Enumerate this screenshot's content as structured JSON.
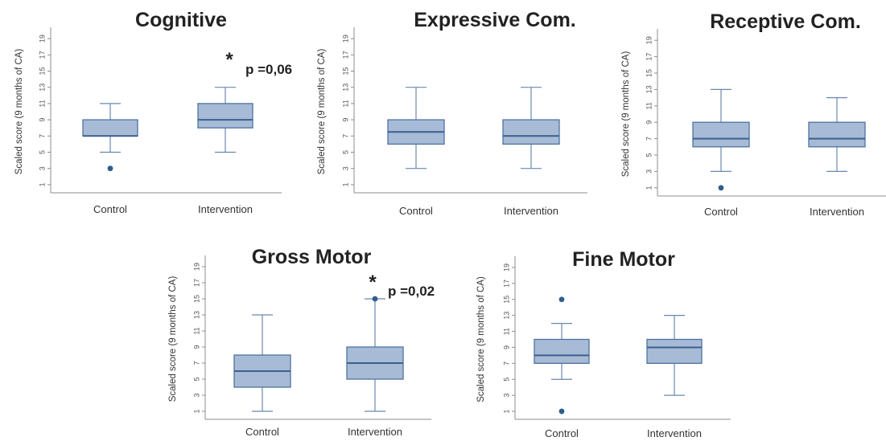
{
  "chart_data": [
    {
      "type": "box",
      "title": "Cognitive",
      "ylabel": "Scaled score (9 months of CA)",
      "ylim": [
        0,
        20
      ],
      "yticks": [
        1,
        3,
        5,
        7,
        9,
        11,
        13,
        15,
        17,
        19
      ],
      "categories": [
        "Control",
        "Intervention"
      ],
      "boxes": [
        {
          "category": "Control",
          "whisker_low": 5,
          "q1": 7,
          "median": 7,
          "q3": 9,
          "whisker_high": 11,
          "outliers": [
            3
          ]
        },
        {
          "category": "Intervention",
          "whisker_low": 5,
          "q1": 8,
          "median": 9,
          "q3": 11,
          "whisker_high": 13,
          "outliers": []
        }
      ],
      "annotation": {
        "marker": "*",
        "text": "p =0,06"
      }
    },
    {
      "type": "box",
      "title": "Expressive Com.",
      "ylabel": "Scaled score (9 months of CA)",
      "ylim": [
        0,
        20
      ],
      "yticks": [
        1,
        3,
        5,
        7,
        9,
        11,
        13,
        15,
        17,
        19
      ],
      "categories": [
        "Control",
        "Intervention"
      ],
      "boxes": [
        {
          "category": "Control",
          "whisker_low": 3,
          "q1": 6,
          "median": 7.5,
          "q3": 9,
          "whisker_high": 13,
          "outliers": []
        },
        {
          "category": "Intervention",
          "whisker_low": 3,
          "q1": 6,
          "median": 7,
          "q3": 9,
          "whisker_high": 13,
          "outliers": []
        }
      ]
    },
    {
      "type": "box",
      "title": "Receptive Com.",
      "ylabel": "Scaled score (9 months of CA)",
      "ylim": [
        0,
        20
      ],
      "yticks": [
        1,
        3,
        5,
        7,
        9,
        11,
        13,
        15,
        17,
        19
      ],
      "categories": [
        "Control",
        "Intervention"
      ],
      "boxes": [
        {
          "category": "Control",
          "whisker_low": 3,
          "q1": 6,
          "median": 7,
          "q3": 9,
          "whisker_high": 13,
          "outliers": [
            1
          ]
        },
        {
          "category": "Intervention",
          "whisker_low": 3,
          "q1": 6,
          "median": 7,
          "q3": 9,
          "whisker_high": 12,
          "outliers": []
        }
      ]
    },
    {
      "type": "box",
      "title": "Gross Motor",
      "ylabel": "Scaled score (9 months of CA)",
      "ylim": [
        0,
        20
      ],
      "yticks": [
        1,
        3,
        5,
        7,
        9,
        11,
        13,
        15,
        17,
        19
      ],
      "categories": [
        "Control",
        "Intervention"
      ],
      "boxes": [
        {
          "category": "Control",
          "whisker_low": 1,
          "q1": 4,
          "median": 6,
          "q3": 8,
          "whisker_high": 13,
          "outliers": []
        },
        {
          "category": "Intervention",
          "whisker_low": 1,
          "q1": 5,
          "median": 7,
          "q3": 9,
          "whisker_high": 15,
          "outliers": [
            15
          ]
        }
      ],
      "annotation": {
        "marker": "*",
        "text": "p =0,02"
      }
    },
    {
      "type": "box",
      "title": "Fine Motor",
      "ylabel": "Scaled score (9 months of CA)",
      "ylim": [
        0,
        20
      ],
      "yticks": [
        1,
        3,
        5,
        7,
        9,
        11,
        13,
        15,
        17,
        19
      ],
      "categories": [
        "Control",
        "Intervention"
      ],
      "boxes": [
        {
          "category": "Control",
          "whisker_low": 5,
          "q1": 7,
          "median": 8,
          "q3": 10,
          "whisker_high": 12,
          "outliers": [
            15,
            1
          ]
        },
        {
          "category": "Intervention",
          "whisker_low": 3,
          "q1": 7,
          "median": 9,
          "q3": 10,
          "whisker_high": 13,
          "outliers": []
        }
      ]
    }
  ],
  "colors": {
    "box_fill": "#a7bbd6",
    "box_stroke": "#4e72a0",
    "median": "#3d5f8e",
    "outlier": "#2f5d8c"
  }
}
